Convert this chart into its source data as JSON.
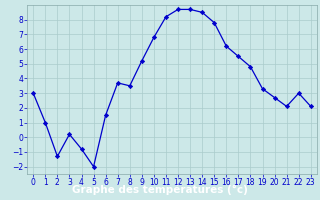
{
  "x": [
    0,
    1,
    2,
    3,
    4,
    5,
    6,
    7,
    8,
    9,
    10,
    11,
    12,
    13,
    14,
    15,
    16,
    17,
    18,
    19,
    20,
    21,
    22,
    23
  ],
  "y": [
    3,
    1,
    -1.3,
    0.2,
    -0.8,
    -2.0,
    1.5,
    3.7,
    3.5,
    5.2,
    6.8,
    8.2,
    8.7,
    8.7,
    8.5,
    7.8,
    6.2,
    5.5,
    4.8,
    3.3,
    2.7,
    2.1,
    3.0,
    2.1
  ],
  "line_color": "#0000cc",
  "marker": "D",
  "marker_size": 2.2,
  "bg_color": "#cce8e8",
  "grid_color": "#aacccc",
  "xlabel": "Graphe des températures (°c)",
  "xlabel_bg": "#3355bb",
  "xlabel_color": "#ffffff",
  "xlabel_fontsize": 7.5,
  "xlim": [
    -0.5,
    23.5
  ],
  "ylim": [
    -2.5,
    9.0
  ],
  "yticks": [
    -2,
    -1,
    0,
    1,
    2,
    3,
    4,
    5,
    6,
    7,
    8
  ],
  "xticks": [
    0,
    1,
    2,
    3,
    4,
    5,
    6,
    7,
    8,
    9,
    10,
    11,
    12,
    13,
    14,
    15,
    16,
    17,
    18,
    19,
    20,
    21,
    22,
    23
  ],
  "tick_fontsize": 5.5,
  "tick_color": "#0000cc",
  "spine_color": "#88aaaa"
}
